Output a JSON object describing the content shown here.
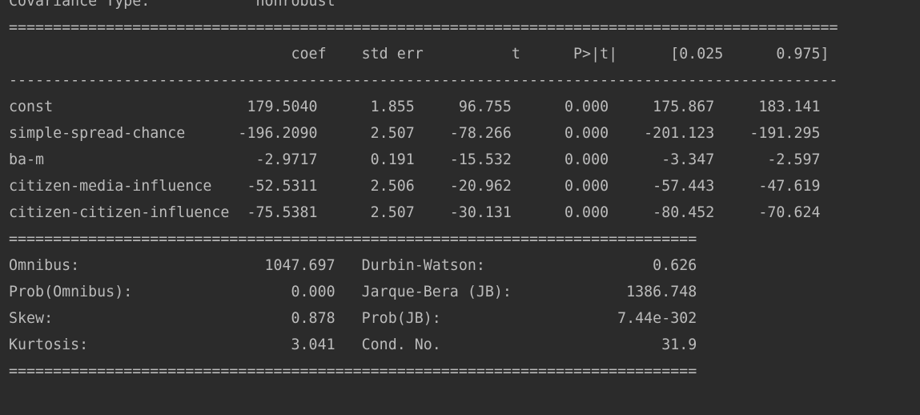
{
  "lines": [
    "Covariance Type:            nonrobust",
    "==============================================================================================",
    "                                coef    std err          t      P>|t|      [0.025      0.975]",
    "----------------------------------------------------------------------------------------------",
    "const                      179.5040      1.855     96.755      0.000     175.867     183.141",
    "simple-spread-chance      -196.2090      2.507    -78.266      0.000    -201.123    -191.295",
    "ba-m                        -2.9717      0.191    -15.532      0.000      -3.347      -2.597",
    "citizen-media-influence    -52.5311      2.506    -20.962      0.000     -57.443     -47.619",
    "citizen-citizen-influence  -75.5381      2.507    -30.131      0.000     -80.452     -70.624",
    "==============================================================================",
    "Omnibus:                     1047.697   Durbin-Watson:                   0.626",
    "Prob(Omnibus):                  0.000   Jarque-Bera (JB):             1386.748",
    "Skew:                           0.878   Prob(JB):                    7.44e-302",
    "Kurtosis:                       3.041   Cond. No.                         31.9",
    "=============================================================================="
  ]
}
